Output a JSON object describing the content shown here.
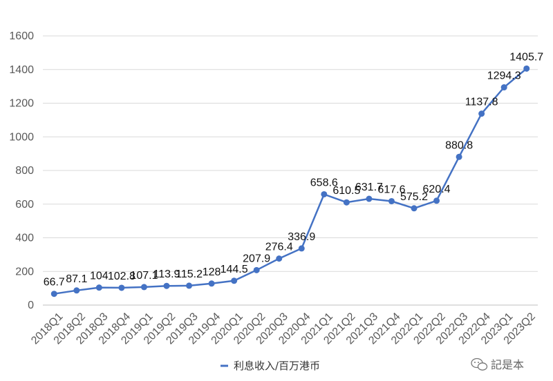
{
  "chart_data": {
    "type": "line",
    "title": "",
    "xlabel": "",
    "ylabel": "",
    "ylim": [
      0,
      1600
    ],
    "yticks": [
      0,
      200,
      400,
      600,
      800,
      1000,
      1200,
      1400,
      1600
    ],
    "grid": true,
    "legend_position": "bottom",
    "categories": [
      "2018Q1",
      "2018Q2",
      "2018Q3",
      "2018Q4",
      "2019Q1",
      "2019Q2",
      "2019Q3",
      "2019Q4",
      "2020Q1",
      "2020Q2",
      "2020Q3",
      "2020Q4",
      "2021Q1",
      "2021Q2",
      "2021Q3",
      "2021Q4",
      "2022Q1",
      "2022Q2",
      "2022Q3",
      "2022Q4",
      "2023Q1",
      "2023Q2"
    ],
    "series": [
      {
        "name": "利息收入/百万港币",
        "color": "#4472C4",
        "values": [
          66.7,
          87.1,
          104,
          102.8,
          107.1,
          113.9,
          115.2,
          128,
          144.5,
          207.9,
          276.4,
          336.9,
          658.6,
          610.5,
          631.7,
          617.6,
          575.2,
          620.4,
          880.8,
          1137.8,
          1294.3,
          1405.7
        ],
        "labels": [
          "66.7",
          "87.1",
          "104",
          "102.8",
          "107.1",
          "113.9",
          "115.2",
          "128",
          "144.5",
          "207.9",
          "276.4",
          "336.9",
          "658.6",
          "610.5",
          "631.7",
          "617.6",
          "575.2",
          "620.4",
          "880.8",
          "1137.8",
          "1294.3",
          "1405.7"
        ]
      }
    ]
  },
  "watermark": {
    "icon": "wechat-icon",
    "text": "記是本"
  }
}
